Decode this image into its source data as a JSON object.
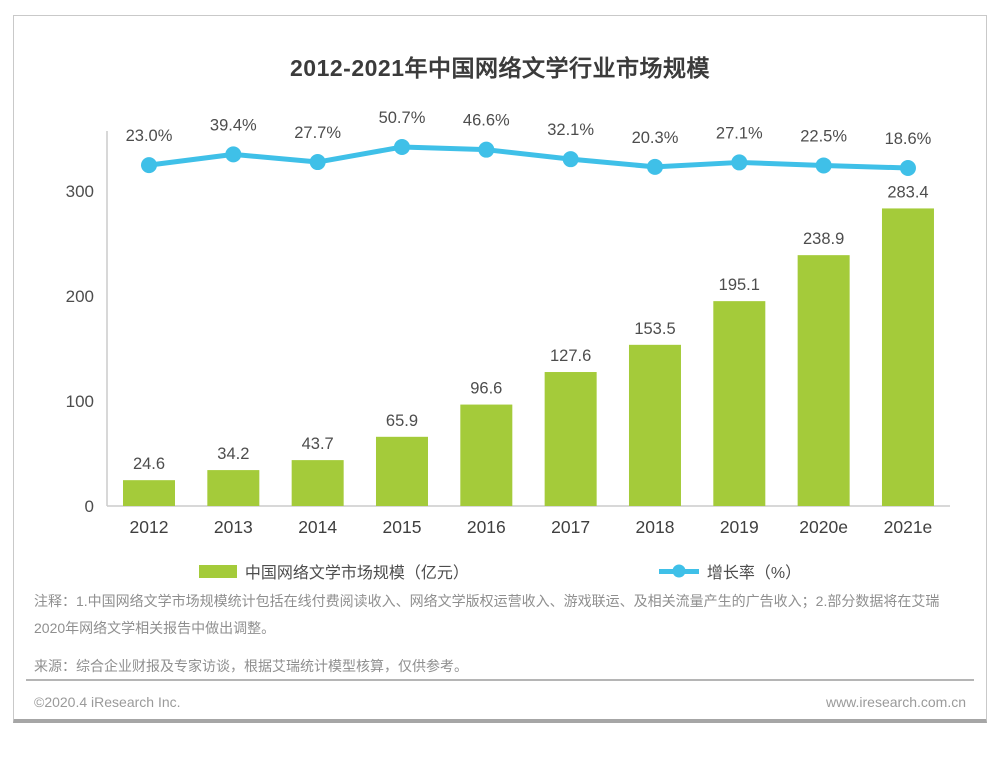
{
  "title": "2012-2021年中国网络文学行业市场规模",
  "chart_data": {
    "type": "bar",
    "categories": [
      "2012",
      "2013",
      "2014",
      "2015",
      "2016",
      "2017",
      "2018",
      "2019",
      "2020e",
      "2021e"
    ],
    "series": [
      {
        "name": "中国网络文学市场规模（亿元）",
        "type": "bar",
        "values": [
          24.6,
          34.2,
          43.7,
          65.9,
          96.6,
          127.6,
          153.5,
          195.1,
          238.9,
          283.4
        ],
        "color": "#a4cb3a"
      },
      {
        "name": "增长率（%）",
        "type": "line",
        "values": [
          23.0,
          39.4,
          27.7,
          50.7,
          46.6,
          32.1,
          20.3,
          27.1,
          22.5,
          18.6
        ],
        "unit": "%",
        "color": "#3fc0e8"
      }
    ],
    "title": "2012-2021年中国网络文学行业市场规模",
    "xlabel": "",
    "ylabel": "",
    "y_axis": {
      "ticks": [
        0,
        100,
        200,
        300
      ],
      "max": 300
    },
    "grid": false,
    "legend_position": "bottom"
  },
  "notes": {
    "line1": "注释：1.中国网络文学市场规模统计包括在线付费阅读收入、网络文学版权运营收入、游戏联运、及相关流量产生的广告收入；2.部分数据将在艾瑞",
    "line2": "2020年网络文学相关报告中做出调整。",
    "source": "来源：综合企业财报及专家访谈，根据艾瑞统计模型核算，仅供参考。"
  },
  "footer": {
    "copyright": "©2020.4 iResearch Inc.",
    "website": "www.iresearch.com.cn"
  },
  "colors": {
    "bar": "#a4cb3a",
    "line": "#3fc0e8",
    "axis": "#cccccc",
    "label_text": "#4d4d4d",
    "note_text": "#8f8f8f"
  }
}
